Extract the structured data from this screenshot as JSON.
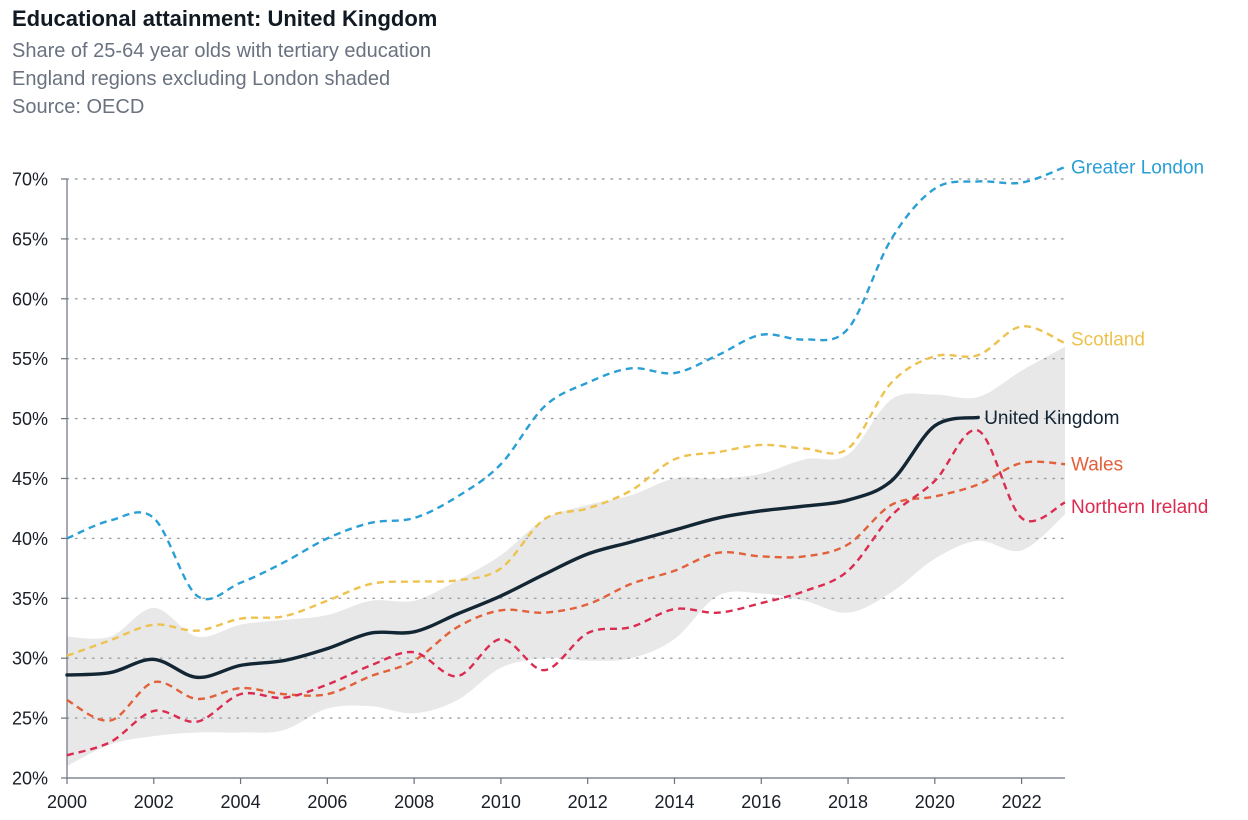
{
  "chart_data": {
    "type": "line",
    "title": "Educational attainment: United Kingdom",
    "subtitle": [
      "Share of 25-64 year olds with tertiary education",
      "England regions excluding London shaded",
      "Source: OECD"
    ],
    "xlabel": "",
    "ylabel": "",
    "xlim": [
      2000,
      2023
    ],
    "ylim": [
      20,
      70
    ],
    "x_ticks": [
      2000,
      2002,
      2004,
      2006,
      2008,
      2010,
      2012,
      2014,
      2016,
      2018,
      2020,
      2022
    ],
    "x_tick_labels": [
      "2000",
      "2002",
      "2004",
      "2006",
      "2008",
      "2010",
      "2012",
      "2014",
      "2016",
      "2018",
      "2020",
      "2022"
    ],
    "y_ticks": [
      20,
      25,
      30,
      35,
      40,
      45,
      50,
      55,
      60,
      65,
      70
    ],
    "y_tick_labels": [
      "20%",
      "25%",
      "30%",
      "35%",
      "40%",
      "45%",
      "50%",
      "55%",
      "60%",
      "65%",
      "70%"
    ],
    "grid": "horizontal dotted",
    "legend": "direct labels at line ends",
    "band": {
      "description": "England regions excluding London",
      "color": "#e8e8e8",
      "x": [
        2000,
        2001,
        2002,
        2003,
        2004,
        2005,
        2006,
        2007,
        2008,
        2009,
        2010,
        2011,
        2012,
        2013,
        2014,
        2015,
        2016,
        2017,
        2018,
        2019,
        2020,
        2021,
        2022,
        2023
      ],
      "lower": [
        21.0,
        22.8,
        23.5,
        23.8,
        23.8,
        24.0,
        25.8,
        26.0,
        25.4,
        26.5,
        29.2,
        30.0,
        29.8,
        30.0,
        31.6,
        35.2,
        35.4,
        34.8,
        33.8,
        35.5,
        38.3,
        39.8,
        39.0,
        42.0
      ],
      "upper": [
        31.8,
        31.8,
        34.2,
        31.8,
        32.8,
        33.2,
        33.6,
        34.8,
        34.8,
        36.5,
        38.6,
        41.6,
        42.8,
        43.6,
        45.0,
        45.0,
        45.4,
        46.6,
        47.0,
        51.6,
        52.0,
        51.8,
        54.0,
        56.0
      ]
    },
    "x": [
      2000,
      2001,
      2002,
      2003,
      2004,
      2005,
      2006,
      2007,
      2008,
      2009,
      2010,
      2011,
      2012,
      2013,
      2014,
      2015,
      2016,
      2017,
      2018,
      2019,
      2020,
      2021,
      2022,
      2023
    ],
    "series": [
      {
        "name": "Greater London",
        "color": "#2a9fd6",
        "dashed": true,
        "values": [
          40.0,
          41.5,
          41.7,
          35.2,
          36.3,
          38.0,
          40.0,
          41.3,
          41.7,
          43.5,
          46.2,
          51.0,
          53.0,
          54.2,
          53.8,
          55.3,
          57.0,
          56.6,
          57.5,
          65.0,
          69.2,
          69.8,
          69.7,
          71.0
        ]
      },
      {
        "name": "Scotland",
        "color": "#eec24f",
        "dashed": true,
        "values": [
          30.2,
          31.5,
          32.8,
          32.3,
          33.3,
          33.5,
          34.8,
          36.2,
          36.4,
          36.5,
          37.5,
          41.6,
          42.5,
          44.0,
          46.6,
          47.2,
          47.8,
          47.5,
          47.5,
          53.0,
          55.2,
          55.3,
          57.7,
          56.3
        ]
      },
      {
        "name": "United Kingdom",
        "color": "#132634",
        "dashed": false,
        "values": [
          28.6,
          28.8,
          29.9,
          28.4,
          29.4,
          29.8,
          30.8,
          32.1,
          32.2,
          33.7,
          35.2,
          37.0,
          38.7,
          39.7,
          40.7,
          41.7,
          42.3,
          42.7,
          43.2,
          44.8,
          49.4,
          50.1,
          null,
          null
        ]
      },
      {
        "name": "Wales",
        "color": "#e2603a",
        "dashed": true,
        "values": [
          26.5,
          24.8,
          28.0,
          26.6,
          27.5,
          27.0,
          27.0,
          28.5,
          29.8,
          32.6,
          34.0,
          33.8,
          34.5,
          36.2,
          37.3,
          38.8,
          38.5,
          38.5,
          39.5,
          42.8,
          43.5,
          44.5,
          46.3,
          46.2
        ]
      },
      {
        "name": "Northern Ireland",
        "color": "#dc2b50",
        "dashed": true,
        "values": [
          21.9,
          23.0,
          25.6,
          24.7,
          27.0,
          26.7,
          27.8,
          29.4,
          30.5,
          28.5,
          31.6,
          29.0,
          32.1,
          32.6,
          34.1,
          33.8,
          34.6,
          35.6,
          37.3,
          41.9,
          44.8,
          49.0,
          41.7,
          43.0
        ]
      }
    ]
  }
}
